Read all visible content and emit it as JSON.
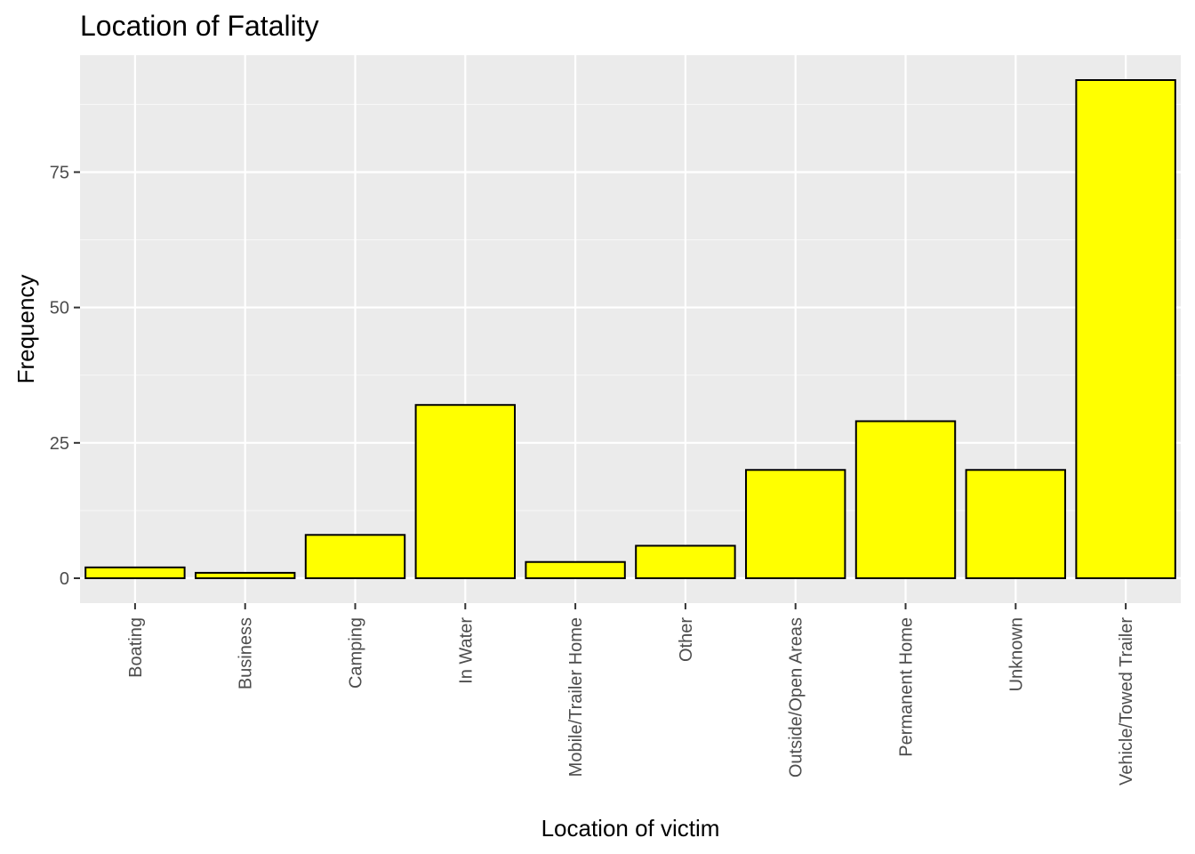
{
  "chart_data": {
    "type": "bar",
    "title": "Location of Fatality",
    "xlabel": "Location of victim",
    "ylabel": "Frequency",
    "categories": [
      "Boating",
      "Business",
      "Camping",
      "In Water",
      "Mobile/Trailer Home",
      "Other",
      "Outside/Open Areas",
      "Permanent Home",
      "Unknown",
      "Vehicle/Towed Trailer"
    ],
    "values": [
      2,
      1,
      8,
      32,
      3,
      6,
      20,
      29,
      20,
      92
    ],
    "ylim": [
      -4.6,
      96.6
    ],
    "yticks": [
      0,
      25,
      50,
      75
    ],
    "grid": true,
    "legend": "none",
    "colors": {
      "panel_background": "#ebebeb",
      "grid_major": "#ffffff",
      "grid_minor": "#f7f7f7",
      "bar_fill": "#ffff00",
      "bar_stroke": "#000000",
      "tick_text": "#4d4d4d",
      "tick_mark": "#333333"
    }
  }
}
